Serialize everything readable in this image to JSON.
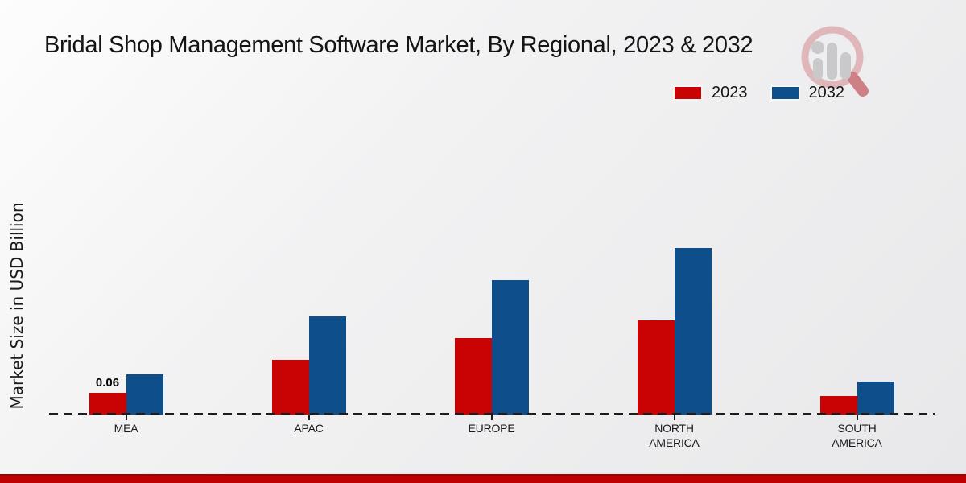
{
  "title": "Bridal Shop Management Software Market, By Regional, 2023 & 2032",
  "legend": {
    "items": [
      {
        "label": "2023",
        "color": "#c90303"
      },
      {
        "label": "2032",
        "color": "#0d4e8b"
      }
    ]
  },
  "chart_data": {
    "type": "bar",
    "title": "Bridal Shop Management Software Market, By Regional, 2023 & 2032",
    "categories": [
      "MEA",
      "APAC",
      "EUROPE",
      "NORTH\nAMERICA",
      "SOUTH\nAMERICA"
    ],
    "series": [
      {
        "name": "2023",
        "color": "#c90303",
        "values": [
          0.06,
          0.15,
          0.21,
          0.26,
          0.05
        ],
        "value_labels": [
          "0.06",
          "",
          "",
          "",
          ""
        ]
      },
      {
        "name": "2032",
        "color": "#0d4e8b",
        "values": [
          0.11,
          0.27,
          0.37,
          0.46,
          0.09
        ],
        "value_labels": [
          "",
          "",
          "",
          "",
          ""
        ]
      }
    ],
    "xlabel": "",
    "ylabel": "Market Size in USD Billion",
    "unit": "USD Billion",
    "ylim": [
      0,
      0.5
    ],
    "grid": false,
    "legend_position": "top-right",
    "x_axis_line_style": "dashed"
  },
  "accent": {
    "footer_band_color": "#bf0000",
    "axis_color": "#1c1c1c"
  },
  "watermark_icon": "magnifier-bar-chart-logo"
}
